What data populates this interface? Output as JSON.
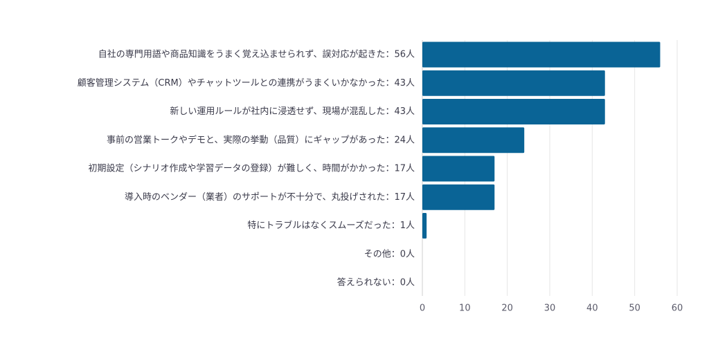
{
  "chart_data": {
    "type": "bar",
    "orientation": "horizontal",
    "categories": [
      "自社の専門用語や商品知識をうまく覚え込ませられず、誤対応が起きた：56人",
      "顧客管理システム（CRM）やチャットツールとの連携がうまくいかなかった：43人",
      "新しい運用ルールが社内に浸透せず、現場が混乱した：43人",
      "事前の営業トークやデモと、実際の挙動（品質）にギャップがあった：24人",
      "初期設定（シナリオ作成や学習データの登録）が難しく、時間がかかった：17人",
      "導入時のベンダー（業者）のサポートが不十分で、丸投げされた：17人",
      "特にトラブルはなくスムーズだった：1人",
      "その他：0人",
      "答えられない：0人"
    ],
    "values": [
      56,
      43,
      43,
      24,
      17,
      17,
      1,
      0,
      0
    ],
    "xlim": [
      0,
      60
    ],
    "x_ticks": [
      "0",
      "10",
      "20",
      "30",
      "40",
      "50",
      "60"
    ],
    "grid": true,
    "bar_color": "#0a6496",
    "title": "",
    "xlabel": "",
    "ylabel": ""
  }
}
